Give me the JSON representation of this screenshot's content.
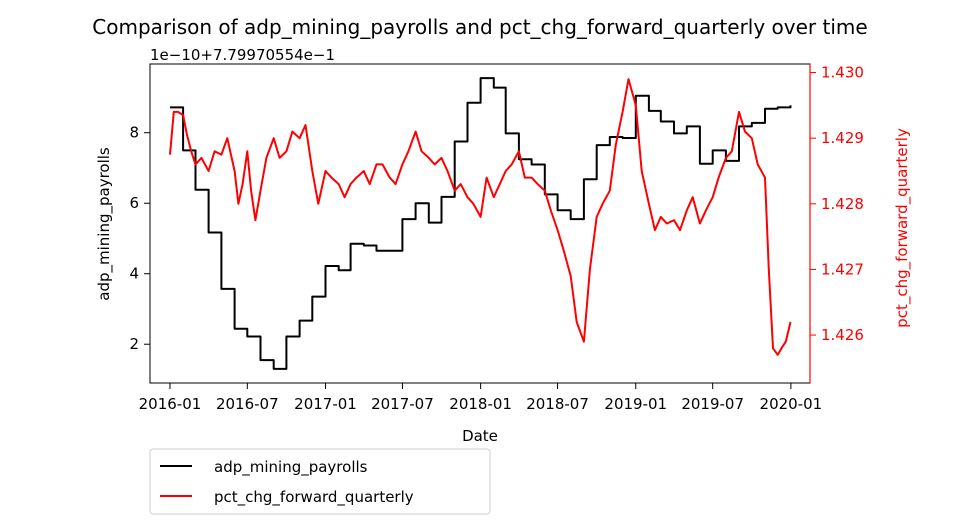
{
  "chart_data": {
    "type": "line",
    "title": "Comparison of adp_mining_payrolls and pct_chg_forward_quarterly over time",
    "xlabel": "Date",
    "ylabel_left": "adp_mining_payrolls",
    "ylabel_right": "pct_chg_forward_quarterly",
    "offset_label": "1e−10+7.79970554e−1",
    "x_ticks": [
      "2016-01",
      "2016-07",
      "2017-01",
      "2017-07",
      "2018-01",
      "2018-07",
      "2019-01",
      "2019-07",
      "2020-01"
    ],
    "y_left_ticks": [
      "2",
      "4",
      "6",
      "8"
    ],
    "y_right_ticks": [
      "1.426",
      "1.427",
      "1.428",
      "1.429",
      "1.430"
    ],
    "y_left_range": [
      0.9,
      9.95
    ],
    "y_right_range": [
      1.42527,
      1.43013
    ],
    "x_range": [
      "2015-11-15",
      "2020-02-15"
    ],
    "grid": false,
    "legend_position": "below-left",
    "colors": {
      "left": "#000000",
      "right": "#ff0000",
      "right_axis": "#ff0000"
    },
    "series": [
      {
        "name": "adp_mining_payrolls",
        "axis": "left",
        "color": "#000000",
        "step": true,
        "x": [
          "2016-01-01",
          "2016-01-20",
          "2016-02-01",
          "2016-03-01",
          "2016-04-01",
          "2016-05-01",
          "2016-06-01",
          "2016-07-01",
          "2016-08-01",
          "2016-09-01",
          "2016-10-01",
          "2016-11-01",
          "2016-12-01",
          "2017-01-01",
          "2017-02-01",
          "2017-03-01",
          "2017-04-01",
          "2017-05-01",
          "2017-06-01",
          "2017-07-01",
          "2017-08-01",
          "2017-09-01",
          "2017-10-01",
          "2017-11-01",
          "2017-12-01",
          "2018-01-01",
          "2018-02-01",
          "2018-03-01",
          "2018-04-01",
          "2018-05-01",
          "2018-06-01",
          "2018-07-01",
          "2018-08-01",
          "2018-09-01",
          "2018-10-01",
          "2018-11-01",
          "2018-12-01",
          "2019-01-01",
          "2019-02-01",
          "2019-03-01",
          "2019-04-01",
          "2019-05-01",
          "2019-06-01",
          "2019-07-01",
          "2019-08-01",
          "2019-09-01",
          "2019-10-01",
          "2019-11-01",
          "2019-12-01",
          "2019-12-31"
        ],
        "values": [
          8.72,
          8.72,
          7.5,
          6.38,
          5.17,
          3.57,
          2.44,
          2.22,
          1.55,
          1.3,
          2.22,
          2.67,
          3.35,
          4.22,
          4.1,
          4.85,
          4.8,
          4.65,
          4.65,
          5.55,
          6.0,
          5.45,
          6.18,
          7.75,
          8.85,
          9.55,
          9.28,
          7.98,
          7.25,
          7.1,
          6.25,
          5.8,
          5.55,
          6.68,
          7.65,
          7.88,
          7.85,
          9.05,
          8.62,
          8.32,
          7.98,
          8.18,
          7.12,
          7.5,
          7.2,
          8.18,
          8.28,
          8.68,
          8.72,
          8.78
        ]
      },
      {
        "name": "pct_chg_forward_quarterly",
        "axis": "right",
        "color": "#ff0000",
        "step": false,
        "x": [
          "2016-01-01",
          "2016-01-10",
          "2016-01-20",
          "2016-02-01",
          "2016-02-10",
          "2016-02-20",
          "2016-03-01",
          "2016-03-15",
          "2016-04-01",
          "2016-04-15",
          "2016-05-01",
          "2016-05-15",
          "2016-06-01",
          "2016-06-10",
          "2016-06-20",
          "2016-07-01",
          "2016-07-10",
          "2016-07-20",
          "2016-08-01",
          "2016-08-15",
          "2016-09-01",
          "2016-09-15",
          "2016-10-01",
          "2016-10-15",
          "2016-11-01",
          "2016-11-15",
          "2016-12-01",
          "2016-12-15",
          "2017-01-01",
          "2017-01-15",
          "2017-02-01",
          "2017-02-15",
          "2017-03-01",
          "2017-03-15",
          "2017-04-01",
          "2017-04-15",
          "2017-05-01",
          "2017-05-15",
          "2017-06-01",
          "2017-06-15",
          "2017-07-01",
          "2017-07-15",
          "2017-08-01",
          "2017-08-15",
          "2017-09-01",
          "2017-09-15",
          "2017-10-01",
          "2017-10-15",
          "2017-11-01",
          "2017-11-15",
          "2017-12-01",
          "2017-12-15",
          "2018-01-01",
          "2018-01-15",
          "2018-02-01",
          "2018-02-15",
          "2018-03-01",
          "2018-03-15",
          "2018-04-01",
          "2018-04-15",
          "2018-05-01",
          "2018-05-15",
          "2018-06-01",
          "2018-06-15",
          "2018-07-01",
          "2018-07-15",
          "2018-08-01",
          "2018-08-15",
          "2018-09-01",
          "2018-09-15",
          "2018-10-01",
          "2018-10-15",
          "2018-11-01",
          "2018-11-15",
          "2018-12-01",
          "2018-12-15",
          "2019-01-01",
          "2019-01-15",
          "2019-02-01",
          "2019-02-15",
          "2019-03-01",
          "2019-03-15",
          "2019-04-01",
          "2019-04-15",
          "2019-05-01",
          "2019-05-15",
          "2019-06-01",
          "2019-06-15",
          "2019-07-01",
          "2019-07-15",
          "2019-08-01",
          "2019-08-15",
          "2019-09-01",
          "2019-09-15",
          "2019-10-01",
          "2019-10-15",
          "2019-11-01",
          "2019-11-10",
          "2019-11-20",
          "2019-12-01",
          "2019-12-10",
          "2019-12-20",
          "2019-12-31"
        ],
        "values": [
          1.42875,
          1.4294,
          1.4294,
          1.42935,
          1.42905,
          1.4288,
          1.4286,
          1.4287,
          1.4285,
          1.4288,
          1.42875,
          1.429,
          1.4285,
          1.428,
          1.4283,
          1.4288,
          1.4282,
          1.42775,
          1.4282,
          1.4287,
          1.429,
          1.4287,
          1.4288,
          1.4291,
          1.429,
          1.4292,
          1.4285,
          1.428,
          1.4285,
          1.4284,
          1.4283,
          1.4281,
          1.4283,
          1.4284,
          1.4285,
          1.4283,
          1.4286,
          1.4286,
          1.4284,
          1.4283,
          1.4286,
          1.4288,
          1.4291,
          1.4288,
          1.4287,
          1.4286,
          1.4287,
          1.4285,
          1.4282,
          1.4283,
          1.4281,
          1.428,
          1.4278,
          1.4284,
          1.4281,
          1.4283,
          1.4285,
          1.4286,
          1.4288,
          1.4284,
          1.4284,
          1.4283,
          1.4282,
          1.4279,
          1.4276,
          1.4273,
          1.4269,
          1.4262,
          1.4259,
          1.427,
          1.4278,
          1.428,
          1.4282,
          1.4289,
          1.4294,
          1.4299,
          1.4295,
          1.4285,
          1.428,
          1.4276,
          1.4278,
          1.4277,
          1.42775,
          1.4276,
          1.4279,
          1.4281,
          1.4277,
          1.4279,
          1.4281,
          1.4284,
          1.4287,
          1.4288,
          1.4294,
          1.4291,
          1.429,
          1.4286,
          1.4284,
          1.427,
          1.4258,
          1.4257,
          1.4258,
          1.4259,
          1.4262
        ]
      }
    ]
  },
  "legend": {
    "items": [
      {
        "label": "adp_mining_payrolls",
        "color": "#000000"
      },
      {
        "label": "pct_chg_forward_quarterly",
        "color": "#ff0000"
      }
    ]
  }
}
